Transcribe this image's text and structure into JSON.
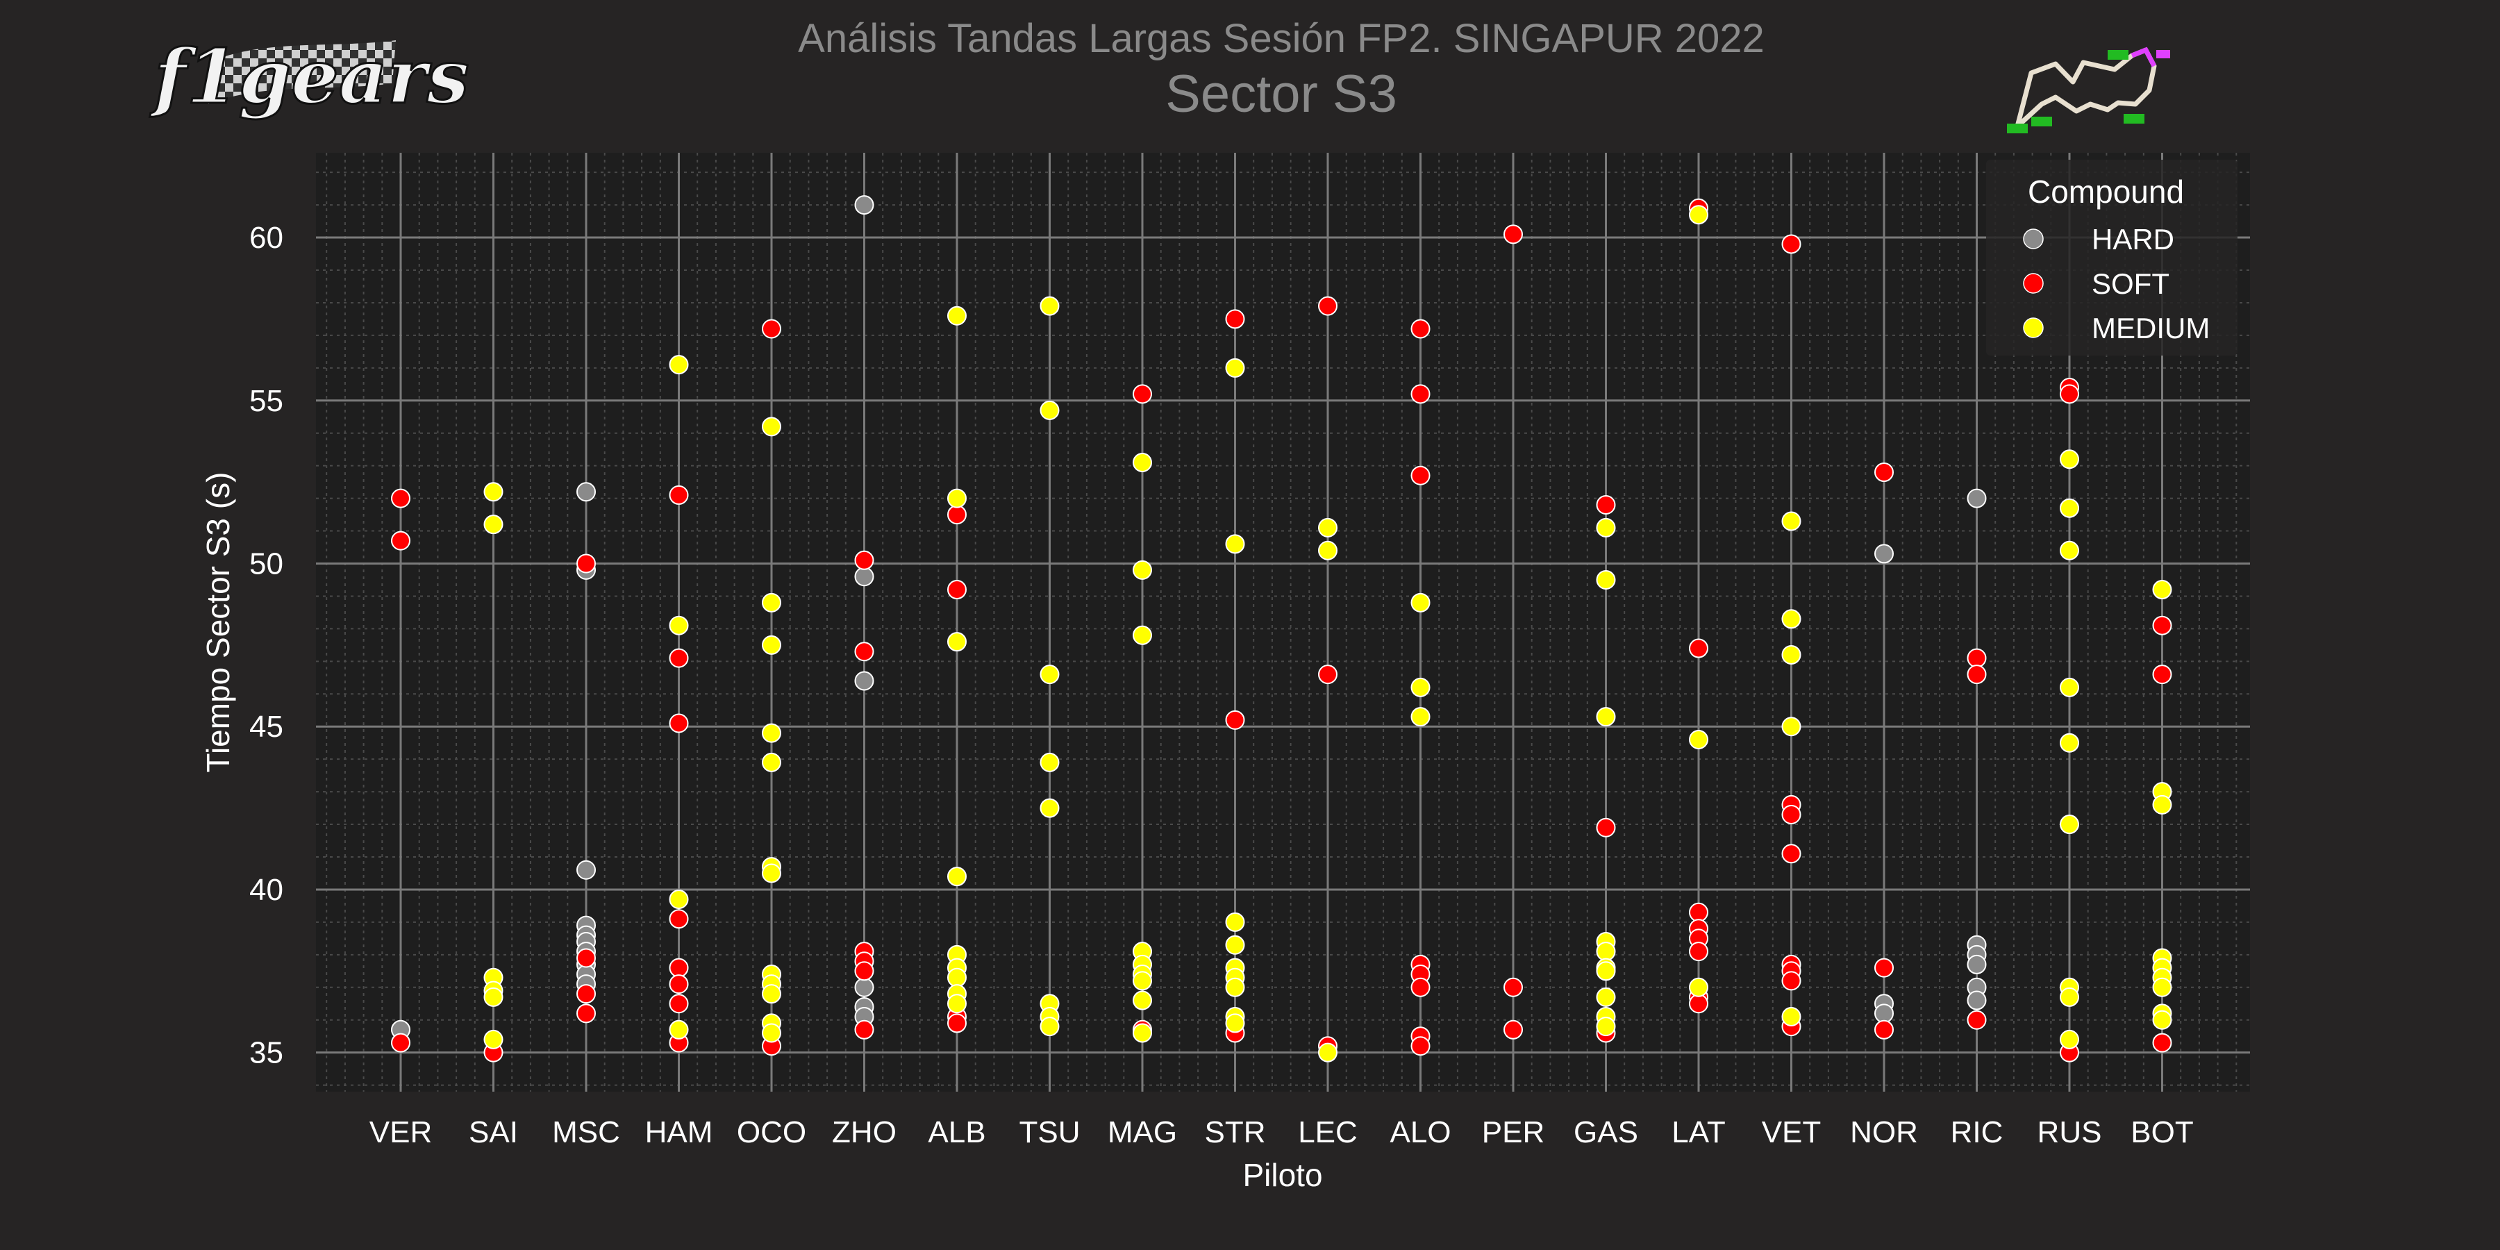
{
  "header": {
    "title": "Análisis Tandas Largas Sesión FP2. SINGAPUR 2022",
    "subtitle": "Sector S3",
    "logo_text": "f1gears"
  },
  "chart_data": {
    "type": "scatter",
    "title": "Análisis Tandas Largas Sesión FP2. SINGAPUR 2022",
    "subtitle": "Sector S3",
    "xlabel": "Piloto",
    "ylabel": "Tiempo Sector S3 (s)",
    "categories": [
      "VER",
      "SAI",
      "MSC",
      "HAM",
      "OCO",
      "ZHO",
      "ALB",
      "TSU",
      "MAG",
      "STR",
      "LEC",
      "ALO",
      "PER",
      "GAS",
      "LAT",
      "VET",
      "NOR",
      "RIC",
      "RUS",
      "BOT"
    ],
    "ylim": [
      33.8,
      62.6
    ],
    "yticks": [
      35,
      40,
      45,
      50,
      55,
      60
    ],
    "grid": true,
    "legend": {
      "title": "Compound",
      "placement": "top-right",
      "entries": [
        {
          "name": "HARD",
          "color": "#8a8a8a"
        },
        {
          "name": "SOFT",
          "color": "#ff0000"
        },
        {
          "name": "MEDIUM",
          "color": "#ffff00"
        }
      ]
    },
    "series": [
      {
        "name": "HARD",
        "color": "#8a8a8a",
        "points": [
          [
            "VER",
            35.7
          ],
          [
            "MSC",
            52.2
          ],
          [
            "MSC",
            49.8
          ],
          [
            "MSC",
            40.6
          ],
          [
            "MSC",
            38.9
          ],
          [
            "MSC",
            38.6
          ],
          [
            "MSC",
            38.4
          ],
          [
            "MSC",
            38.1
          ],
          [
            "MSC",
            37.7
          ],
          [
            "MSC",
            37.4
          ],
          [
            "MSC",
            37.1
          ],
          [
            "ZHO",
            61.0
          ],
          [
            "ZHO",
            49.6
          ],
          [
            "ZHO",
            46.4
          ],
          [
            "ZHO",
            37.0
          ],
          [
            "ZHO",
            36.4
          ],
          [
            "ZHO",
            36.1
          ],
          [
            "NOR",
            50.3
          ],
          [
            "NOR",
            36.5
          ],
          [
            "NOR",
            36.2
          ],
          [
            "RIC",
            52.0
          ],
          [
            "RIC",
            38.3
          ],
          [
            "RIC",
            38.0
          ],
          [
            "RIC",
            37.7
          ],
          [
            "RIC",
            37.0
          ],
          [
            "RIC",
            36.6
          ]
        ]
      },
      {
        "name": "SOFT",
        "color": "#ff0000",
        "points": [
          [
            "VER",
            52.0
          ],
          [
            "VER",
            50.7
          ],
          [
            "VER",
            35.3
          ],
          [
            "SAI",
            35.0
          ],
          [
            "MSC",
            50.0
          ],
          [
            "MSC",
            37.9
          ],
          [
            "MSC",
            36.8
          ],
          [
            "MSC",
            36.2
          ],
          [
            "HAM",
            52.1
          ],
          [
            "HAM",
            47.1
          ],
          [
            "HAM",
            45.1
          ],
          [
            "HAM",
            39.1
          ],
          [
            "HAM",
            37.6
          ],
          [
            "HAM",
            37.1
          ],
          [
            "HAM",
            36.5
          ],
          [
            "HAM",
            35.3
          ],
          [
            "OCO",
            57.2
          ],
          [
            "OCO",
            35.2
          ],
          [
            "ZHO",
            50.1
          ],
          [
            "ZHO",
            47.3
          ],
          [
            "ZHO",
            38.1
          ],
          [
            "ZHO",
            37.8
          ],
          [
            "ZHO",
            37.5
          ],
          [
            "ZHO",
            35.7
          ],
          [
            "ALB",
            51.5
          ],
          [
            "ALB",
            49.2
          ],
          [
            "ALB",
            36.1
          ],
          [
            "ALB",
            35.9
          ],
          [
            "MAG",
            55.2
          ],
          [
            "MAG",
            35.7
          ],
          [
            "STR",
            57.5
          ],
          [
            "STR",
            45.2
          ],
          [
            "STR",
            35.6
          ],
          [
            "LEC",
            57.9
          ],
          [
            "LEC",
            46.6
          ],
          [
            "LEC",
            35.2
          ],
          [
            "ALO",
            57.2
          ],
          [
            "ALO",
            55.2
          ],
          [
            "ALO",
            52.7
          ],
          [
            "ALO",
            37.7
          ],
          [
            "ALO",
            37.4
          ],
          [
            "ALO",
            37.0
          ],
          [
            "ALO",
            35.5
          ],
          [
            "ALO",
            35.2
          ],
          [
            "PER",
            60.1
          ],
          [
            "PER",
            37.0
          ],
          [
            "PER",
            35.7
          ],
          [
            "GAS",
            51.8
          ],
          [
            "GAS",
            41.9
          ],
          [
            "GAS",
            35.6
          ],
          [
            "LAT",
            60.9
          ],
          [
            "LAT",
            47.4
          ],
          [
            "LAT",
            39.3
          ],
          [
            "LAT",
            38.8
          ],
          [
            "LAT",
            38.5
          ],
          [
            "LAT",
            38.1
          ],
          [
            "LAT",
            36.7
          ],
          [
            "LAT",
            36.5
          ],
          [
            "VET",
            59.8
          ],
          [
            "VET",
            42.6
          ],
          [
            "VET",
            42.3
          ],
          [
            "VET",
            41.1
          ],
          [
            "VET",
            37.7
          ],
          [
            "VET",
            37.5
          ],
          [
            "VET",
            37.2
          ],
          [
            "VET",
            35.8
          ],
          [
            "NOR",
            52.8
          ],
          [
            "NOR",
            37.6
          ],
          [
            "NOR",
            35.7
          ],
          [
            "RIC",
            47.1
          ],
          [
            "RIC",
            46.6
          ],
          [
            "RIC",
            36.0
          ],
          [
            "RUS",
            55.4
          ],
          [
            "RUS",
            55.2
          ],
          [
            "RUS",
            35.0
          ],
          [
            "BOT",
            48.1
          ],
          [
            "BOT",
            46.6
          ],
          [
            "BOT",
            35.3
          ]
        ]
      },
      {
        "name": "MEDIUM",
        "color": "#ffff00",
        "points": [
          [
            "SAI",
            52.2
          ],
          [
            "SAI",
            51.2
          ],
          [
            "SAI",
            37.3
          ],
          [
            "SAI",
            36.9
          ],
          [
            "SAI",
            36.7
          ],
          [
            "SAI",
            35.4
          ],
          [
            "HAM",
            56.1
          ],
          [
            "HAM",
            48.1
          ],
          [
            "HAM",
            39.7
          ],
          [
            "HAM",
            35.7
          ],
          [
            "OCO",
            54.2
          ],
          [
            "OCO",
            48.8
          ],
          [
            "OCO",
            47.5
          ],
          [
            "OCO",
            44.8
          ],
          [
            "OCO",
            43.9
          ],
          [
            "OCO",
            40.7
          ],
          [
            "OCO",
            40.5
          ],
          [
            "OCO",
            37.4
          ],
          [
            "OCO",
            37.1
          ],
          [
            "OCO",
            36.8
          ],
          [
            "OCO",
            35.9
          ],
          [
            "OCO",
            35.6
          ],
          [
            "ALB",
            57.6
          ],
          [
            "ALB",
            52.0
          ],
          [
            "ALB",
            47.6
          ],
          [
            "ALB",
            40.4
          ],
          [
            "ALB",
            38.0
          ],
          [
            "ALB",
            37.6
          ],
          [
            "ALB",
            37.3
          ],
          [
            "ALB",
            36.8
          ],
          [
            "ALB",
            36.5
          ],
          [
            "TSU",
            57.9
          ],
          [
            "TSU",
            54.7
          ],
          [
            "TSU",
            46.6
          ],
          [
            "TSU",
            43.9
          ],
          [
            "TSU",
            42.5
          ],
          [
            "TSU",
            36.5
          ],
          [
            "TSU",
            36.1
          ],
          [
            "TSU",
            35.8
          ],
          [
            "MAG",
            53.1
          ],
          [
            "MAG",
            49.8
          ],
          [
            "MAG",
            47.8
          ],
          [
            "MAG",
            38.1
          ],
          [
            "MAG",
            37.7
          ],
          [
            "MAG",
            37.4
          ],
          [
            "MAG",
            37.2
          ],
          [
            "MAG",
            36.6
          ],
          [
            "MAG",
            35.6
          ],
          [
            "STR",
            56.0
          ],
          [
            "STR",
            50.6
          ],
          [
            "STR",
            39.0
          ],
          [
            "STR",
            38.3
          ],
          [
            "STR",
            37.6
          ],
          [
            "STR",
            37.3
          ],
          [
            "STR",
            37.0
          ],
          [
            "STR",
            36.1
          ],
          [
            "STR",
            35.9
          ],
          [
            "LEC",
            51.1
          ],
          [
            "LEC",
            50.4
          ],
          [
            "LEC",
            35.0
          ],
          [
            "ALO",
            48.8
          ],
          [
            "ALO",
            46.2
          ],
          [
            "ALO",
            45.3
          ],
          [
            "GAS",
            51.1
          ],
          [
            "GAS",
            49.5
          ],
          [
            "GAS",
            45.3
          ],
          [
            "GAS",
            38.4
          ],
          [
            "GAS",
            38.1
          ],
          [
            "GAS",
            37.6
          ],
          [
            "GAS",
            37.5
          ],
          [
            "GAS",
            36.7
          ],
          [
            "GAS",
            36.1
          ],
          [
            "GAS",
            35.8
          ],
          [
            "LAT",
            60.7
          ],
          [
            "LAT",
            44.6
          ],
          [
            "LAT",
            37.0
          ],
          [
            "VET",
            51.3
          ],
          [
            "VET",
            48.3
          ],
          [
            "VET",
            47.2
          ],
          [
            "VET",
            45.0
          ],
          [
            "VET",
            36.1
          ],
          [
            "RUS",
            53.2
          ],
          [
            "RUS",
            51.7
          ],
          [
            "RUS",
            50.4
          ],
          [
            "RUS",
            46.2
          ],
          [
            "RUS",
            44.5
          ],
          [
            "RUS",
            42.0
          ],
          [
            "RUS",
            37.0
          ],
          [
            "RUS",
            36.7
          ],
          [
            "RUS",
            35.4
          ],
          [
            "BOT",
            49.2
          ],
          [
            "BOT",
            43.0
          ],
          [
            "BOT",
            42.6
          ],
          [
            "BOT",
            37.9
          ],
          [
            "BOT",
            37.6
          ],
          [
            "BOT",
            37.3
          ],
          [
            "BOT",
            37.0
          ],
          [
            "BOT",
            36.2
          ],
          [
            "BOT",
            36.0
          ]
        ]
      }
    ]
  }
}
